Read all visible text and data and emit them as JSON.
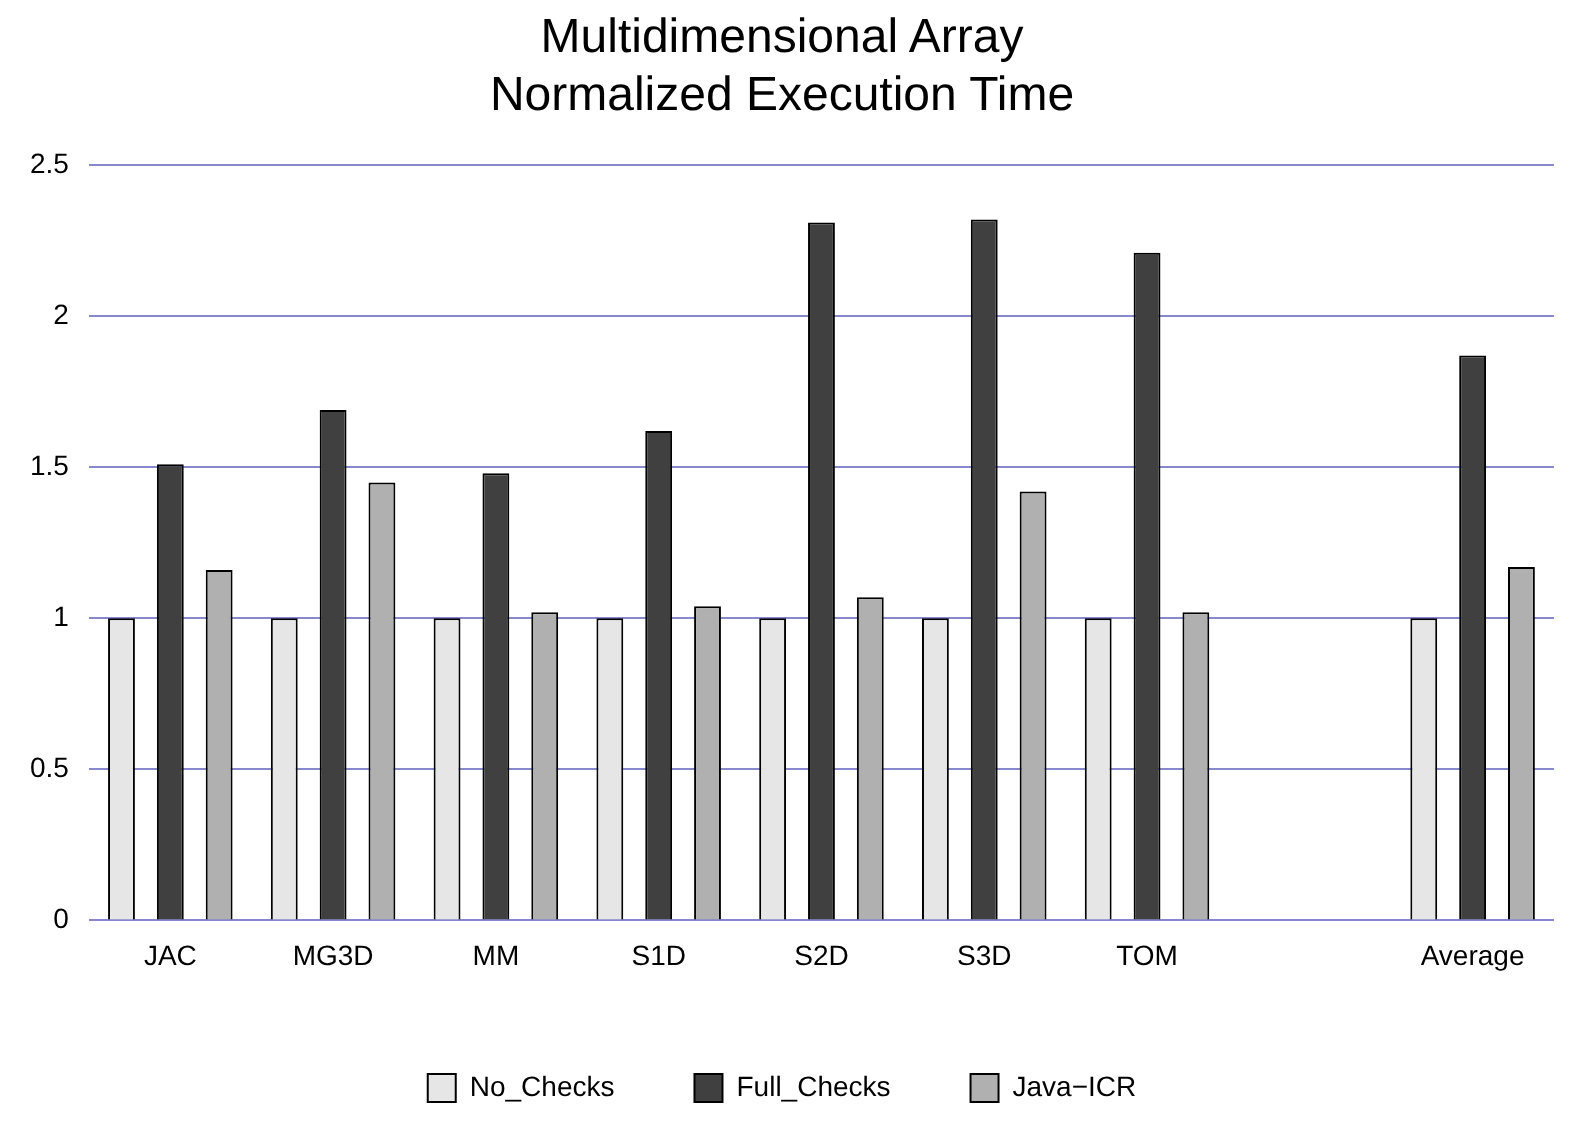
{
  "chart_data": {
    "type": "bar",
    "title": "Multidimensional Array\nNormalized Execution Time",
    "categories": [
      "JAC",
      "MG3D",
      "MM",
      "S1D",
      "S2D",
      "S3D",
      "TOM",
      null,
      "Average"
    ],
    "series": [
      {
        "name": "No_Checks",
        "color": "#e6e6e6",
        "values": [
          1,
          1,
          1,
          1,
          1,
          1,
          1,
          null,
          1
        ]
      },
      {
        "name": "Full_Checks",
        "color": "#404040",
        "values": [
          1.51,
          1.69,
          1.48,
          1.62,
          2.31,
          2.32,
          2.21,
          null,
          1.87
        ]
      },
      {
        "name": "Java−ICR",
        "color": "#b0b0b0",
        "values": [
          1.16,
          1.45,
          1.02,
          1.04,
          1.07,
          1.42,
          1.02,
          null,
          1.17
        ]
      }
    ],
    "ylim": [
      0,
      2.5
    ],
    "yticks": [
      0,
      0.5,
      1,
      1.5,
      2,
      2.5
    ],
    "grid": "y",
    "legend": "bottom"
  }
}
